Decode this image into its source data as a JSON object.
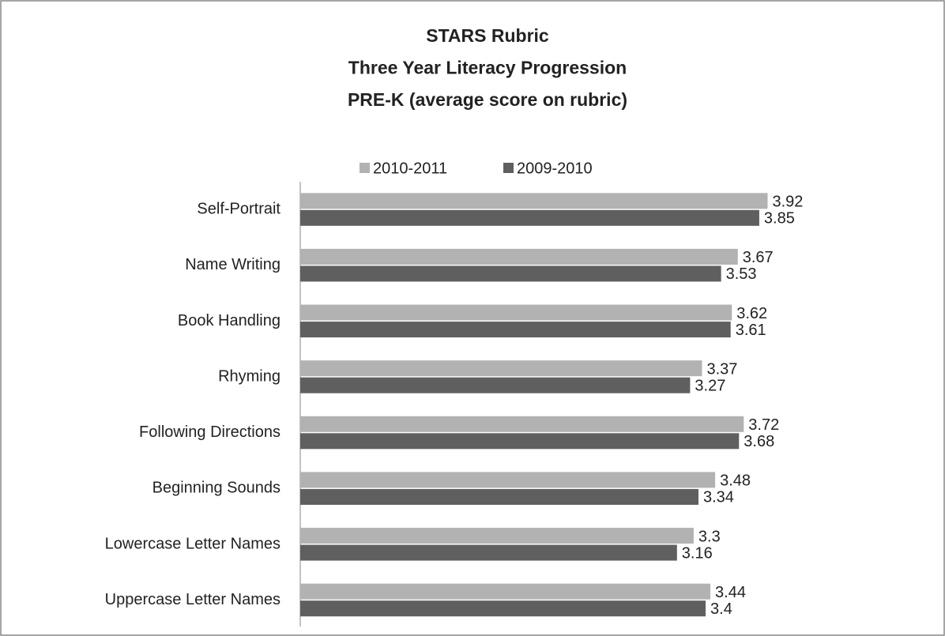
{
  "chart_data": {
    "type": "hbar",
    "title": [
      "STARS Rubric",
      "Three Year Literacy Progression",
      "PRE-K (average score on rubric)"
    ],
    "categories": [
      "Self-Portrait",
      "Name Writing",
      "Book Handling",
      "Rhyming",
      "Following Directions",
      "Beginning Sounds",
      "Lowercase Letter Names",
      "Uppercase Letter Names"
    ],
    "series": [
      {
        "name": "2010-2011",
        "color": "#b2b2b2",
        "values": [
          3.92,
          3.67,
          3.62,
          3.37,
          3.72,
          3.48,
          3.3,
          3.44
        ]
      },
      {
        "name": "2009-2010",
        "color": "#5f5f5f",
        "values": [
          3.85,
          3.53,
          3.61,
          3.27,
          3.68,
          3.34,
          3.16,
          3.4
        ]
      }
    ],
    "xlim": [
      0,
      4.5
    ],
    "legend": "top"
  }
}
